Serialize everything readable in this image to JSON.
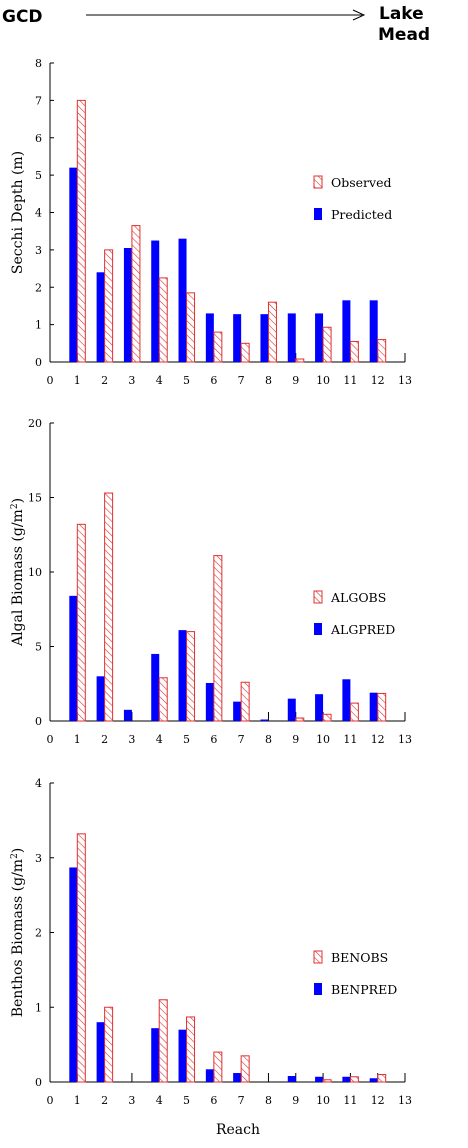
{
  "header": {
    "left": "GCD",
    "right_line1": "Lake",
    "right_line2": "Mead"
  },
  "colors": {
    "observed": "#e03030",
    "predicted": "#0000ff",
    "axis": "#000000"
  },
  "chart_data": [
    {
      "type": "bar",
      "ylabel": "Secchi Depth (m)",
      "xlabel": "",
      "ylim": [
        0,
        8
      ],
      "yticks": [
        0,
        1,
        2,
        3,
        4,
        5,
        6,
        7,
        8
      ],
      "xlim": [
        0,
        13
      ],
      "xticks": [
        0,
        1,
        2,
        3,
        4,
        5,
        6,
        7,
        8,
        9,
        10,
        11,
        12,
        13
      ],
      "legend_position": "right",
      "categories": [
        1,
        2,
        3,
        4,
        5,
        6,
        7,
        8,
        9,
        10,
        11,
        12
      ],
      "series": [
        {
          "name": "Observed",
          "style": "hatched",
          "values": [
            7.0,
            3.0,
            3.65,
            2.25,
            1.85,
            0.8,
            0.5,
            1.6,
            0.08,
            0.93,
            0.55,
            0.6
          ]
        },
        {
          "name": "Predicted",
          "style": "solid",
          "values": [
            5.2,
            2.4,
            3.05,
            3.25,
            3.3,
            1.3,
            1.28,
            1.28,
            1.3,
            1.3,
            1.65,
            1.65
          ]
        }
      ]
    },
    {
      "type": "bar",
      "ylabel": "Algal Biomass (g/m",
      "ylabel_sup": "2",
      "ylabel_end": ")",
      "xlabel": "",
      "ylim": [
        0,
        20
      ],
      "yticks": [
        0,
        5,
        10,
        15,
        20
      ],
      "xlim": [
        0,
        13
      ],
      "xticks": [
        0,
        1,
        2,
        3,
        4,
        5,
        6,
        7,
        8,
        9,
        10,
        11,
        12,
        13
      ],
      "legend_position": "right",
      "categories": [
        1,
        2,
        3,
        4,
        5,
        6,
        7,
        8,
        9,
        10,
        11,
        12
      ],
      "series": [
        {
          "name": "ALGOBS",
          "style": "hatched",
          "values": [
            13.2,
            15.3,
            0,
            2.9,
            6.0,
            11.1,
            2.6,
            0,
            0.2,
            0.45,
            1.2,
            1.85
          ]
        },
        {
          "name": "ALGPRED",
          "style": "solid",
          "values": [
            8.4,
            3.0,
            0.75,
            4.5,
            6.1,
            2.55,
            1.3,
            0.1,
            1.5,
            1.8,
            2.8,
            1.9
          ]
        }
      ]
    },
    {
      "type": "bar",
      "ylabel": "Benthos Biomass (g/m",
      "ylabel_sup": "2",
      "ylabel_end": ")",
      "xlabel": "Reach",
      "ylim": [
        0,
        4
      ],
      "yticks": [
        0,
        1,
        2,
        3,
        4
      ],
      "xlim": [
        0,
        13
      ],
      "xticks": [
        0,
        1,
        2,
        3,
        4,
        5,
        6,
        7,
        8,
        9,
        10,
        11,
        12,
        13
      ],
      "legend_position": "right",
      "categories": [
        1,
        2,
        3,
        4,
        5,
        6,
        7,
        8,
        9,
        10,
        11,
        12
      ],
      "series": [
        {
          "name": "BENOBS",
          "style": "hatched",
          "values": [
            3.32,
            1.0,
            0,
            1.1,
            0.87,
            0.4,
            0.35,
            0,
            0,
            0.03,
            0.07,
            0.1
          ]
        },
        {
          "name": "BENPRED",
          "style": "solid",
          "values": [
            2.87,
            0.8,
            0,
            0.72,
            0.7,
            0.17,
            0.12,
            0,
            0.08,
            0.07,
            0.07,
            0.05
          ]
        }
      ]
    }
  ]
}
